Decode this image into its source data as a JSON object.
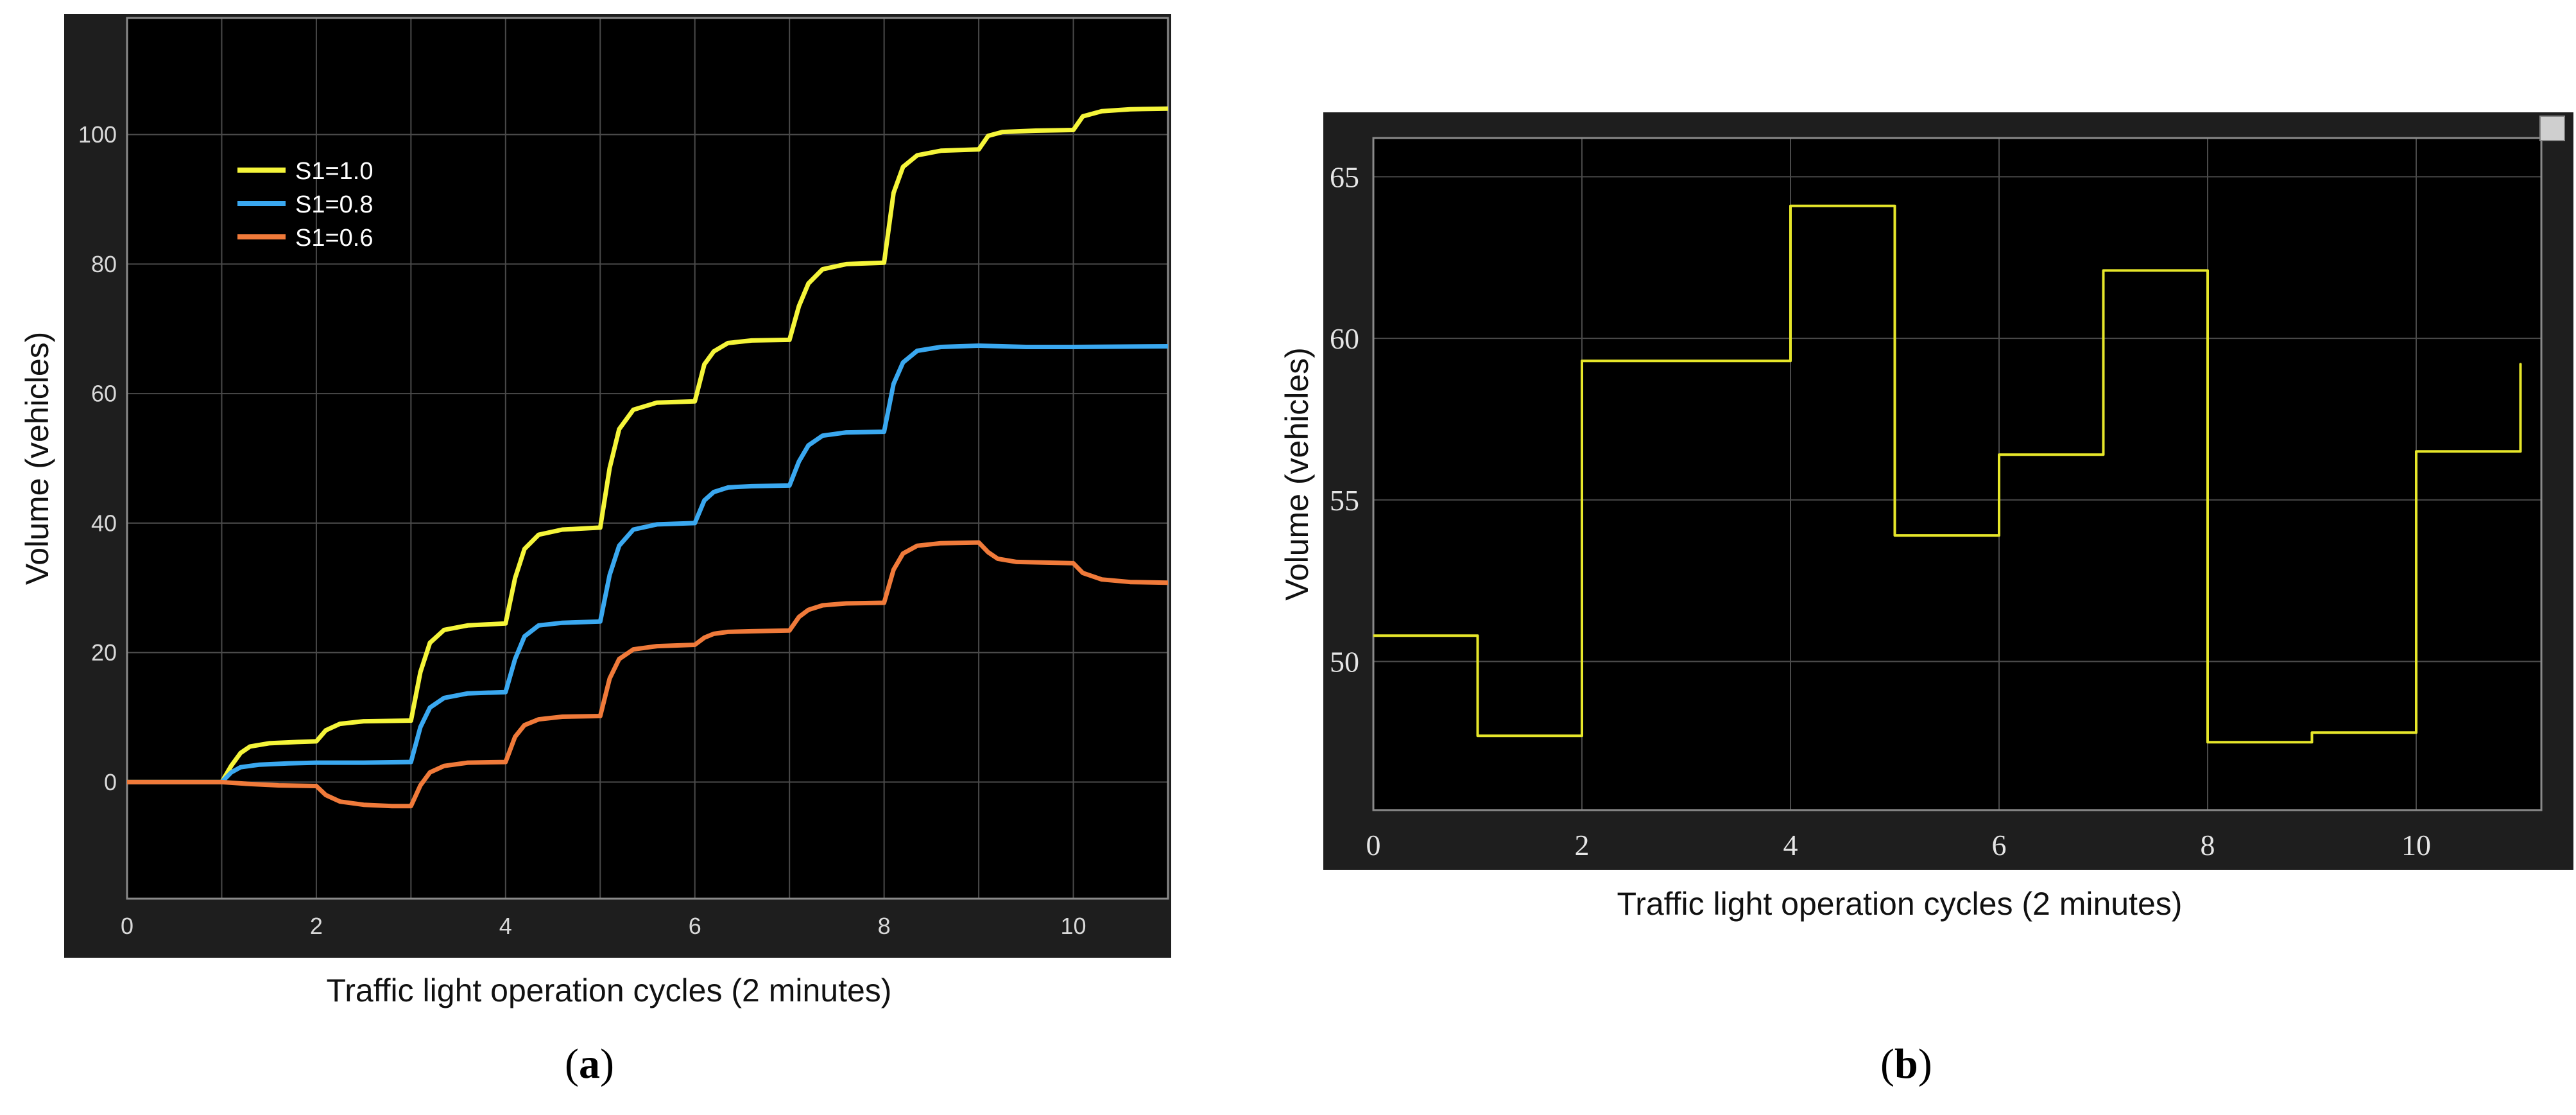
{
  "chart_data": [
    {
      "type": "line",
      "xlabel": "Traffic light operation cycles (2 minutes)",
      "ylabel": "Volume  (vehicles)",
      "xlim": [
        0,
        11
      ],
      "ylim": [
        -18,
        118
      ],
      "xticks": [
        0,
        2,
        4,
        6,
        8,
        10
      ],
      "yticks": [
        0,
        20,
        40,
        60,
        80,
        100
      ],
      "xgrid": [
        1,
        2,
        3,
        4,
        5,
        6,
        7,
        8,
        9,
        10
      ],
      "ygrid": [
        -20,
        0,
        20,
        40,
        60,
        80,
        100
      ],
      "grid": true,
      "legend_position": "top-left",
      "series": [
        {
          "name": "S1=1.0",
          "color": "#f5f53a",
          "x": [
            0,
            1.0,
            1.1,
            1.2,
            1.3,
            1.5,
            1.8,
            2.0,
            2.1,
            2.25,
            2.5,
            3.0,
            3.1,
            3.2,
            3.35,
            3.6,
            4.0,
            4.1,
            4.2,
            4.35,
            4.6,
            5.0,
            5.1,
            5.2,
            5.35,
            5.6,
            6.0,
            6.1,
            6.2,
            6.35,
            6.6,
            7.0,
            7.1,
            7.2,
            7.35,
            7.6,
            8.0,
            8.1,
            8.2,
            8.35,
            8.6,
            9.0,
            9.1,
            9.25,
            9.6,
            10.0,
            10.1,
            10.3,
            10.6,
            11.0
          ],
          "values": [
            0,
            0,
            2.5,
            4.5,
            5.5,
            6.0,
            6.2,
            6.3,
            8.0,
            9.0,
            9.4,
            9.5,
            17.0,
            21.5,
            23.5,
            24.2,
            24.5,
            31.5,
            36.0,
            38.2,
            39.0,
            39.3,
            48.5,
            54.5,
            57.5,
            58.6,
            58.8,
            64.5,
            66.5,
            67.8,
            68.2,
            68.3,
            73.5,
            77.0,
            79.2,
            80.0,
            80.2,
            91.0,
            95.0,
            96.8,
            97.5,
            97.7,
            99.8,
            100.4,
            100.6,
            100.7,
            102.8,
            103.6,
            103.9,
            104.0
          ]
        },
        {
          "name": "S1=0.8",
          "color": "#3aa8f0",
          "x": [
            0,
            1.0,
            1.1,
            1.2,
            1.4,
            1.7,
            2.0,
            2.5,
            3.0,
            3.1,
            3.2,
            3.35,
            3.6,
            4.0,
            4.1,
            4.2,
            4.35,
            4.6,
            5.0,
            5.1,
            5.2,
            5.35,
            5.6,
            6.0,
            6.1,
            6.2,
            6.35,
            6.6,
            7.0,
            7.1,
            7.2,
            7.35,
            7.6,
            8.0,
            8.1,
            8.2,
            8.35,
            8.6,
            9.0,
            9.5,
            10.0,
            11.0
          ],
          "values": [
            0,
            0,
            1.5,
            2.3,
            2.7,
            2.9,
            3.0,
            3.0,
            3.1,
            8.5,
            11.5,
            13.0,
            13.7,
            13.9,
            19.0,
            22.5,
            24.2,
            24.6,
            24.8,
            32.0,
            36.5,
            39.0,
            39.8,
            40.0,
            43.5,
            44.8,
            45.5,
            45.7,
            45.8,
            49.5,
            52.0,
            53.5,
            54.0,
            54.1,
            61.5,
            64.8,
            66.6,
            67.2,
            67.4,
            67.2,
            67.2,
            67.3
          ]
        },
        {
          "name": "S1=0.6",
          "color": "#f07a3a",
          "x": [
            0,
            1.0,
            1.3,
            1.6,
            2.0,
            2.1,
            2.25,
            2.5,
            2.8,
            3.0,
            3.1,
            3.2,
            3.35,
            3.6,
            4.0,
            4.1,
            4.2,
            4.35,
            4.6,
            5.0,
            5.1,
            5.2,
            5.35,
            5.6,
            6.0,
            6.1,
            6.2,
            6.35,
            6.6,
            7.0,
            7.1,
            7.2,
            7.35,
            7.6,
            8.0,
            8.1,
            8.2,
            8.35,
            8.6,
            9.0,
            9.1,
            9.2,
            9.4,
            10.0,
            10.1,
            10.3,
            10.6,
            11.0
          ],
          "values": [
            0,
            0,
            -0.3,
            -0.5,
            -0.6,
            -2.0,
            -3.0,
            -3.5,
            -3.7,
            -3.7,
            -0.5,
            1.5,
            2.5,
            3.0,
            3.1,
            7.0,
            8.8,
            9.7,
            10.1,
            10.2,
            16.0,
            19.0,
            20.5,
            21.0,
            21.2,
            22.3,
            22.9,
            23.2,
            23.3,
            23.4,
            25.5,
            26.6,
            27.3,
            27.6,
            27.7,
            32.8,
            35.3,
            36.5,
            36.9,
            37.0,
            35.5,
            34.5,
            34.0,
            33.8,
            32.3,
            31.3,
            30.9,
            30.8
          ]
        }
      ],
      "caption": "(a)"
    },
    {
      "type": "line",
      "xlabel": "Traffic light operation cycles (2 minutes)",
      "ylabel": "Volume  (vehicles)",
      "xlim": [
        0,
        11.2
      ],
      "ylim": [
        45.4,
        66.2
      ],
      "xticks": [
        0,
        2,
        4,
        6,
        8,
        10
      ],
      "yticks": [
        50,
        55,
        60,
        65
      ],
      "xgrid": [
        2,
        4,
        6,
        8,
        10
      ],
      "ygrid": [
        50,
        55,
        60,
        65
      ],
      "grid": true,
      "step": true,
      "series": [
        {
          "color": "#e6e62a",
          "x": [
            0,
            1,
            1,
            2,
            2,
            4,
            4,
            5,
            5,
            6,
            6,
            7,
            7,
            8,
            8,
            9,
            9,
            10,
            10,
            11,
            11
          ],
          "values": [
            50.8,
            50.8,
            47.7,
            47.7,
            59.3,
            59.3,
            64.1,
            64.1,
            53.9,
            53.9,
            56.4,
            56.4,
            62.1,
            62.1,
            47.5,
            47.5,
            47.8,
            47.8,
            56.5,
            56.5,
            59.2
          ]
        }
      ],
      "caption": "(b)"
    }
  ]
}
